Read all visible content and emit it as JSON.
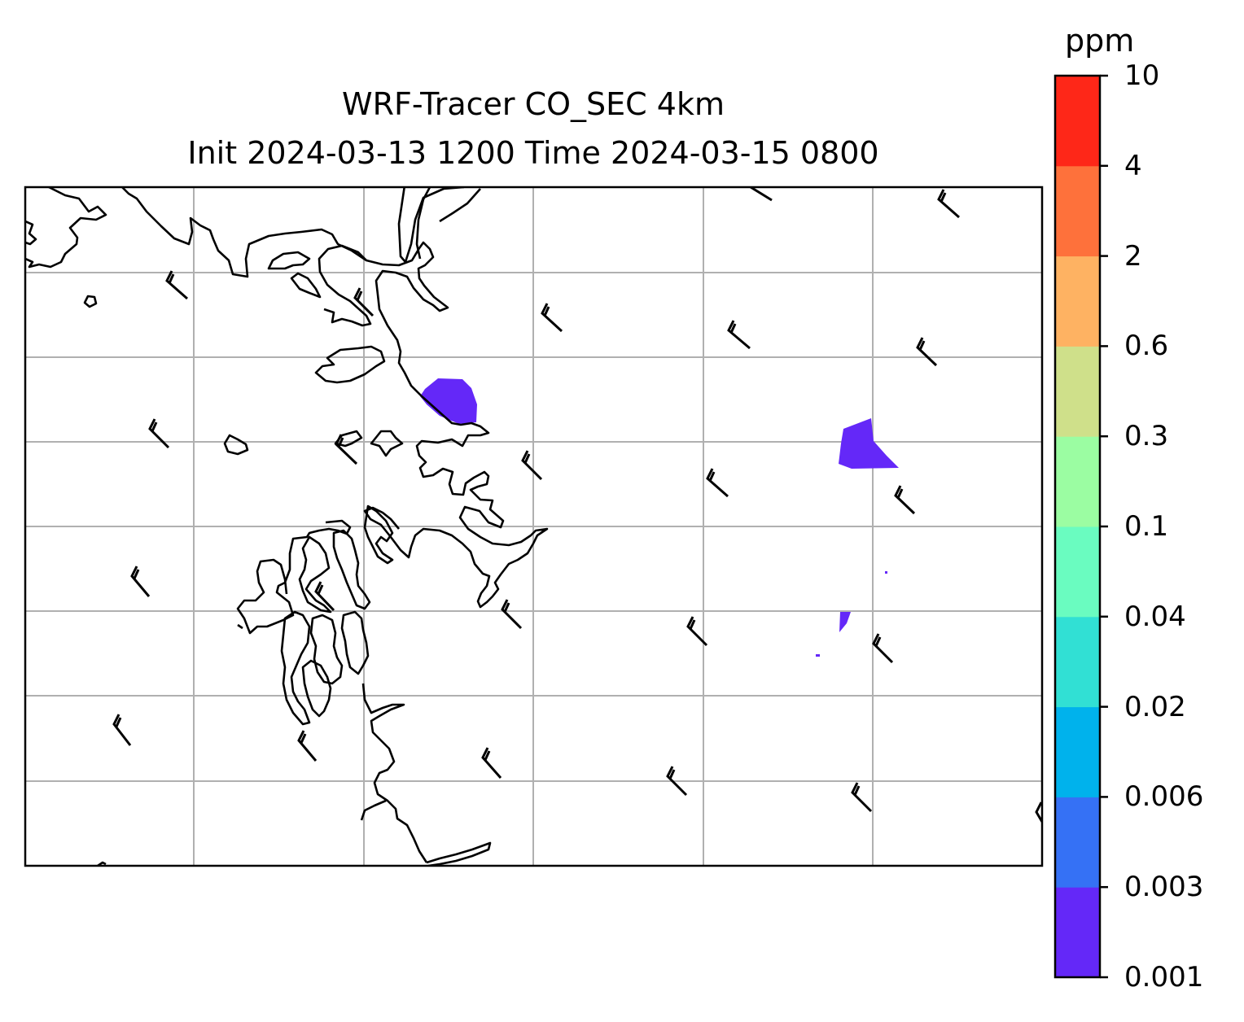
{
  "title": {
    "line1": "WRF-Tracer CO_SEC 4km",
    "line2": "Init 2024-03-13 1200 Time 2024-03-15 0800"
  },
  "colorbar": {
    "unit": "ppm",
    "levels": [
      "0.001",
      "0.003",
      "0.006",
      "0.02",
      "0.04",
      "0.1",
      "0.3",
      "0.6",
      "2",
      "4",
      "10"
    ],
    "colors": [
      "#6428f8",
      "#3571f5",
      "#00b2ec",
      "#31e0d4",
      "#6afcc0",
      "#9bfda2",
      "#cfe08a",
      "#feb262",
      "#fe713b",
      "#fe2718"
    ]
  },
  "map_style": {
    "grid_color": "#b0b0b0",
    "coast_color": "#000000",
    "barb_color": "#000000",
    "tracer_color": "#6428f8"
  }
}
